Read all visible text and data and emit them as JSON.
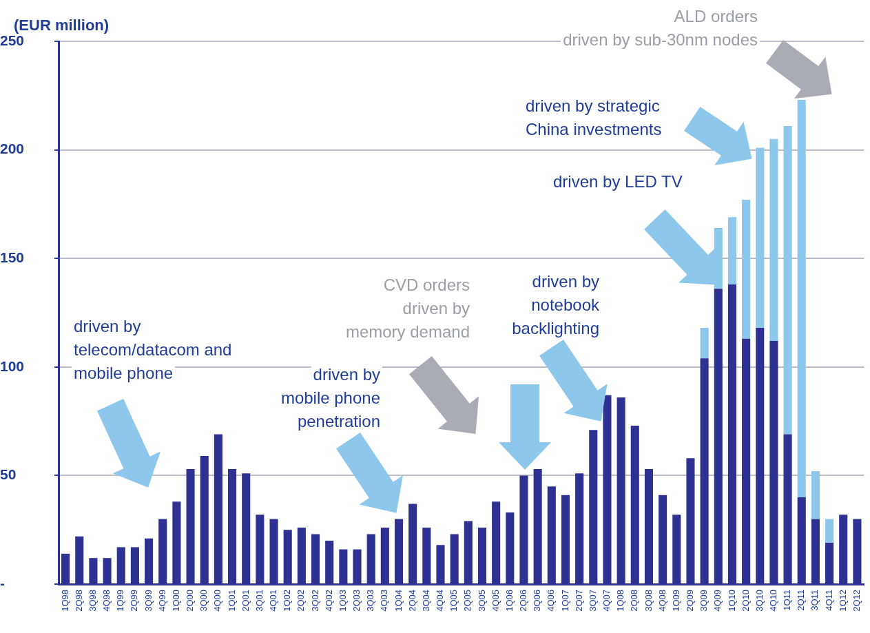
{
  "chart_data": {
    "type": "bar",
    "stacked": true,
    "ylabel": "(EUR million)",
    "categories": [
      "1Q98",
      "2Q98",
      "3Q98",
      "4Q98",
      "1Q99",
      "2Q99",
      "3Q99",
      "4Q99",
      "1Q00",
      "2Q00",
      "3Q00",
      "4Q00",
      "1Q01",
      "2Q01",
      "3Q01",
      "4Q01",
      "1Q02",
      "2Q02",
      "3Q02",
      "4Q02",
      "1Q03",
      "2Q03",
      "3Q03",
      "4Q03",
      "1Q04",
      "2Q04",
      "3Q04",
      "4Q04",
      "1Q05",
      "2Q05",
      "3Q05",
      "4Q05",
      "1Q06",
      "2Q06",
      "3Q06",
      "4Q06",
      "1Q07",
      "2Q07",
      "3Q07",
      "4Q07",
      "1Q08",
      "2Q08",
      "3Q08",
      "4Q08",
      "1Q09",
      "2Q09",
      "3Q09",
      "4Q09",
      "1Q10",
      "2Q10",
      "3Q10",
      "4Q10",
      "1Q11",
      "2Q11",
      "3Q11",
      "4Q11",
      "1Q12",
      "2Q12"
    ],
    "series": [
      {
        "color": "#2e3192",
        "values": [
          14,
          22,
          12,
          12,
          17,
          17,
          21,
          30,
          38,
          53,
          59,
          69,
          53,
          51,
          32,
          30,
          25,
          26,
          23,
          20,
          16,
          16,
          23,
          26,
          30,
          37,
          26,
          18,
          23,
          29,
          26,
          38,
          33,
          50,
          53,
          45,
          41,
          51,
          71,
          87,
          86,
          73,
          53,
          41,
          32,
          58,
          104,
          136,
          138,
          113,
          118,
          112,
          69,
          40,
          30,
          19,
          32,
          30
        ]
      },
      {
        "color": "#8dc8ec",
        "values": [
          null,
          null,
          null,
          null,
          null,
          null,
          null,
          null,
          null,
          null,
          null,
          null,
          null,
          null,
          null,
          null,
          null,
          null,
          null,
          null,
          null,
          null,
          null,
          null,
          null,
          null,
          null,
          null,
          null,
          null,
          null,
          null,
          null,
          null,
          null,
          null,
          null,
          null,
          null,
          null,
          null,
          null,
          null,
          null,
          null,
          null,
          14,
          28,
          31,
          64,
          83,
          93,
          142,
          183,
          22,
          11,
          null,
          null
        ]
      }
    ],
    "ylim": [
      0,
      250
    ],
    "yticks": [
      {
        "value": 0,
        "label": "-"
      },
      50,
      100,
      150,
      200,
      250
    ],
    "grid": "y",
    "legend": false,
    "annotations": [
      "driven by\ntelecom/datacom and\nmobile phone",
      "driven by\nmobile phone\npenetration",
      "CVD orders\ndriven by\nmemory demand",
      "driven by\nnotebook\nbacklighting",
      "driven by LED TV",
      "driven by strategic\nChina investments",
      "ALD orders\ndriven by sub-30nm nodes"
    ]
  }
}
